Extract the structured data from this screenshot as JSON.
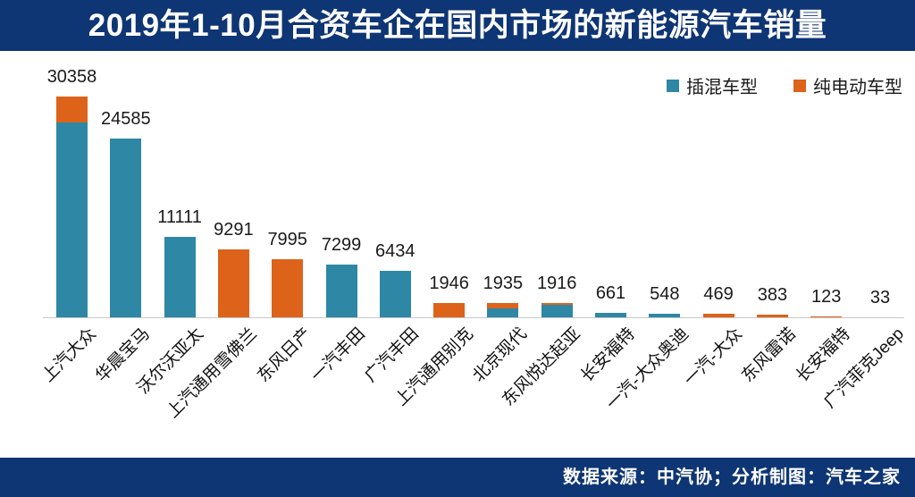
{
  "title": "2019年1-10月合资车企在国内市场的新能源汽车销量",
  "footer": {
    "source_text": "数据来源：中汽协；分析制图：汽车之家"
  },
  "colors": {
    "navy_bar": "#0e3574",
    "phev_teal": "#2e87a5",
    "bev_orange": "#dd621a",
    "axis_line": "#c9c9c9",
    "label_text": "#1a1a1a",
    "title_text": "#ffffff"
  },
  "legend": [
    {
      "label": "插混车型",
      "color": "#2e87a5"
    },
    {
      "label": "纯电动车型",
      "color": "#dd621a"
    }
  ],
  "chart_data": {
    "type": "bar",
    "stacked": true,
    "title": "2019年1-10月合资车企在国内市场的新能源汽车销量",
    "categories": [
      "上汽大众",
      "华晨宝马",
      "沃尔沃亚太",
      "上汽通用雪佛兰",
      "东风日产",
      "一汽丰田",
      "广汽丰田",
      "上汽通用别克",
      "北京现代",
      "东风悦达起亚",
      "长安福特",
      "一汽-大众奥迪",
      "一汽-大众",
      "东风雷诺",
      "长安福特",
      "广汽菲克Jeep"
    ],
    "series": [
      {
        "name": "插混车型",
        "color": "#2e87a5",
        "values": [
          26800,
          24585,
          11111,
          0,
          0,
          7299,
          6434,
          0,
          1195,
          1676,
          661,
          548,
          0,
          0,
          0,
          33
        ]
      },
      {
        "name": "纯电动车型",
        "color": "#dd621a",
        "values": [
          3558,
          0,
          0,
          9291,
          7995,
          0,
          0,
          1946,
          740,
          240,
          0,
          0,
          469,
          383,
          123,
          0
        ]
      }
    ],
    "totals": [
      30358,
      24585,
      11111,
      9291,
      7995,
      7299,
      6434,
      1946,
      1935,
      1916,
      661,
      548,
      469,
      383,
      123,
      33
    ],
    "total_labels": [
      "30358",
      "24585",
      "11111",
      "9291",
      "7995",
      "7299",
      "6434",
      "1946",
      "1935",
      "1916",
      "661",
      "548",
      "469",
      "383",
      "123",
      "33"
    ],
    "xlabel": "",
    "ylabel": "",
    "ylim": [
      0,
      32000
    ],
    "grid": false,
    "legend_position": "top-right"
  }
}
